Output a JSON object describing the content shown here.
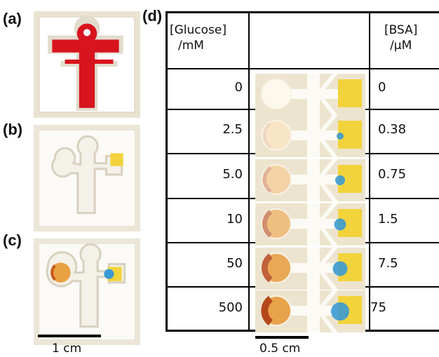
{
  "panels": {
    "a": "(a)",
    "b": "(b)",
    "c": "(c)",
    "d": "(d)"
  },
  "scale_left": "1 cm",
  "scale_table": "0.5 cm",
  "table": {
    "header_left": [
      "[Glucose]",
      "/mM"
    ],
    "header_right": [
      "[BSA]",
      "/μM"
    ],
    "rows": [
      {
        "glucose": "0",
        "bsa": "0",
        "glucose_level": 0.0,
        "protein_level": 0.0
      },
      {
        "glucose": "2.5",
        "bsa": "0.38",
        "glucose_level": 0.2,
        "protein_level": 0.2
      },
      {
        "glucose": "5.0",
        "bsa": "0.75",
        "glucose_level": 0.4,
        "protein_level": 0.4
      },
      {
        "glucose": "10",
        "bsa": "1.5",
        "glucose_level": 0.6,
        "protein_level": 0.55
      },
      {
        "glucose": "50",
        "bsa": "7.5",
        "glucose_level": 0.85,
        "protein_level": 0.75
      },
      {
        "glucose": "500",
        "bsa": "75",
        "glucose_level": 1.0,
        "protein_level": 1.0
      }
    ]
  },
  "colors": {
    "paper": "#f7f5f0",
    "frame": "#ece6d6",
    "red_dye": "#d8141e",
    "protein_yellow": "#f2d33c",
    "protein_blue": "#3b9ad1",
    "glucose_brown": "#b5481b"
  }
}
